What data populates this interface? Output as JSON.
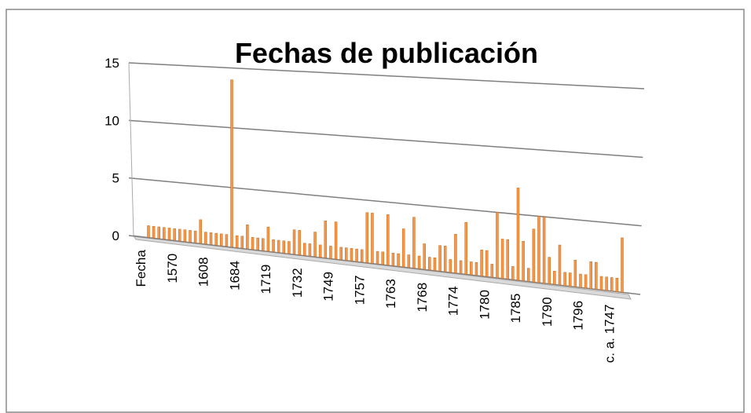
{
  "chart_data": {
    "type": "bar",
    "title": "Fechas de publicación",
    "categories": [
      "Fecha",
      null,
      null,
      null,
      null,
      null,
      "1570",
      null,
      null,
      null,
      null,
      null,
      "1608",
      null,
      null,
      null,
      null,
      null,
      "1684",
      null,
      null,
      null,
      null,
      null,
      "1719",
      null,
      null,
      null,
      null,
      null,
      "1732",
      null,
      null,
      null,
      null,
      null,
      "1749",
      null,
      null,
      null,
      null,
      null,
      "1757",
      null,
      null,
      null,
      null,
      null,
      "1763",
      null,
      null,
      null,
      null,
      null,
      "1768",
      null,
      null,
      null,
      null,
      null,
      "1774",
      null,
      null,
      null,
      null,
      null,
      "1780",
      null,
      null,
      null,
      null,
      null,
      "1785",
      null,
      null,
      null,
      null,
      null,
      "1790",
      null,
      null,
      null,
      null,
      null,
      "1796",
      null,
      null,
      null,
      null,
      null,
      "c. a. 1747",
      null
    ],
    "values": [
      1,
      1,
      1,
      1,
      1,
      1,
      1,
      1,
      1,
      1,
      2,
      1,
      1,
      1,
      1,
      1,
      14,
      1,
      1,
      2,
      1,
      1,
      1,
      2,
      1,
      1,
      1,
      1,
      2,
      2,
      1,
      1,
      2,
      1,
      3,
      1,
      3,
      1,
      1,
      1,
      1,
      1,
      4,
      4,
      1,
      1,
      4,
      1,
      1,
      3,
      1,
      4,
      1,
      2,
      1,
      1,
      2,
      2,
      1,
      3,
      1,
      4,
      1,
      1,
      2,
      2,
      1,
      5,
      3,
      3,
      1,
      7,
      3,
      1,
      4,
      5,
      5,
      2,
      1,
      3,
      1,
      1,
      2,
      1,
      1,
      2,
      2,
      1,
      1,
      1,
      1,
      4
    ],
    "color": "#f79646",
    "ylim": [
      0,
      15
    ],
    "yticks": [
      0,
      5,
      10,
      15
    ],
    "grid": true
  }
}
